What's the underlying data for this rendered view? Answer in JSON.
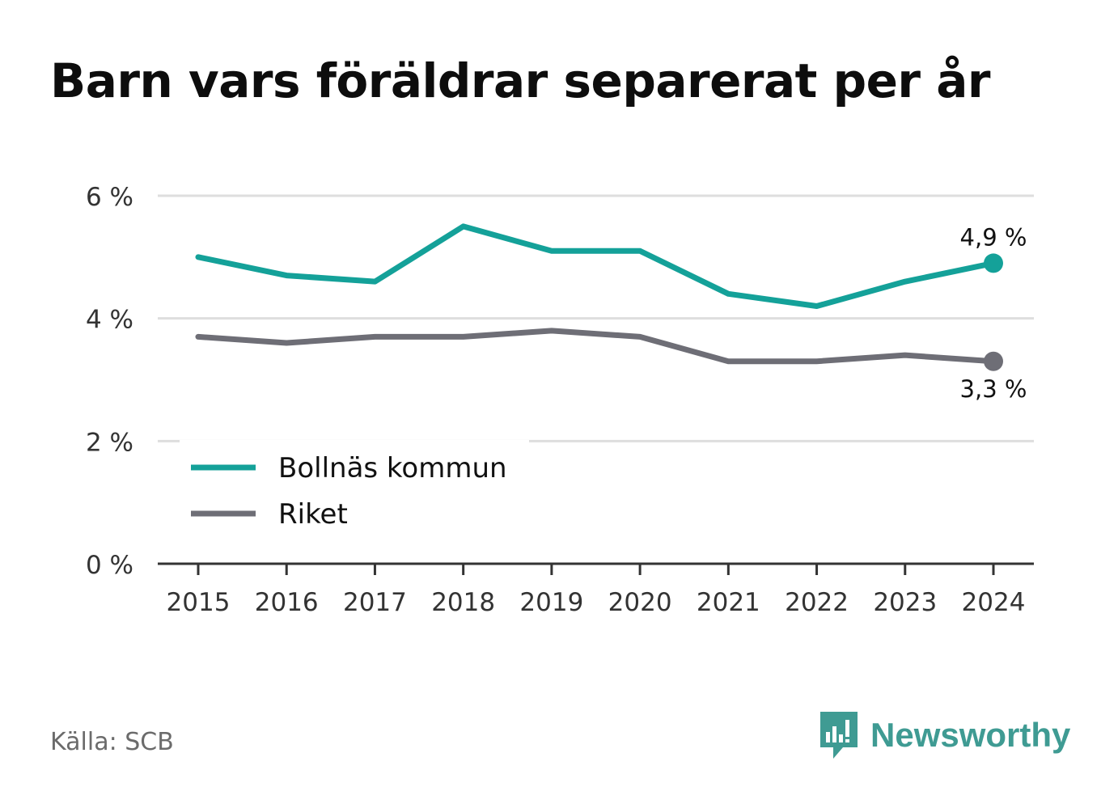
{
  "chart_data": {
    "type": "line",
    "title": "Barn vars föräldrar separerat per år",
    "categories": [
      "2015",
      "2016",
      "2017",
      "2018",
      "2019",
      "2020",
      "2021",
      "2022",
      "2023",
      "2024"
    ],
    "y_ticks": [
      "0 %",
      "2 %",
      "4 %",
      "6 %"
    ],
    "ylim": [
      0,
      6
    ],
    "grid": true,
    "legend_position": "bottom-left",
    "series": [
      {
        "name": "Bollnäs kommun",
        "color": "#14a199",
        "values": [
          5.0,
          4.7,
          4.6,
          5.5,
          5.1,
          5.1,
          4.4,
          4.2,
          4.6,
          4.9
        ],
        "end_label": "4,9 %"
      },
      {
        "name": "Riket",
        "color": "#6e6e76",
        "values": [
          3.7,
          3.6,
          3.7,
          3.7,
          3.8,
          3.7,
          3.3,
          3.3,
          3.4,
          3.3
        ],
        "end_label": "3,3 %"
      }
    ]
  },
  "source": "Källa: SCB",
  "brand": {
    "name": "Newsworthy",
    "icon": "newsworthy-logo-icon",
    "color": "#3f9b93"
  }
}
